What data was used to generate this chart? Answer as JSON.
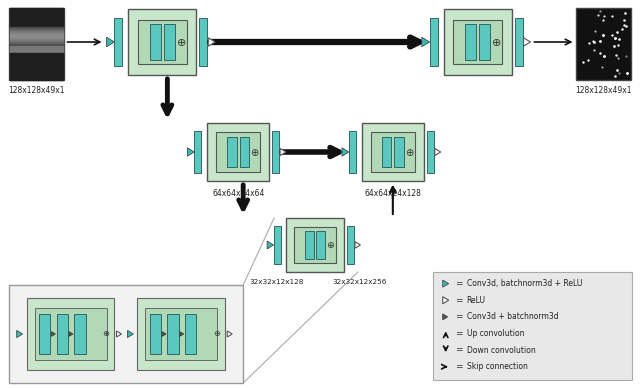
{
  "bg_color": "#ffffff",
  "light_green": "#c8e6c9",
  "mid_green": "#b2d9b5",
  "teal": "#5bc8c0",
  "arrow_color": "#111111",
  "legend_bg": "#e8e8e8",
  "label_128_in": "128x128x49x1",
  "label_128_out": "128x128x49x1",
  "label_64_in": "64x64x24x64",
  "label_64_out": "64x64x24x128",
  "label_32_in": "32x32x12x128",
  "label_32_out": "32x32x12x256"
}
